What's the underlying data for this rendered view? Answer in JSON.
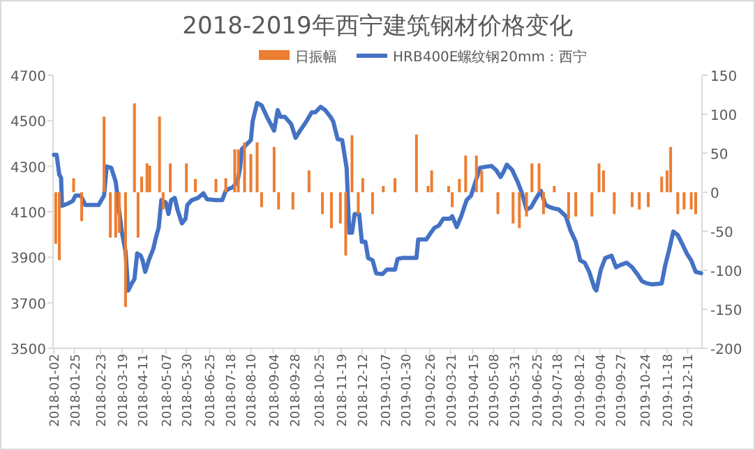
{
  "chart_data": {
    "type": "line",
    "title": "2018-2019年西宁建筑钢材价格变化",
    "legend": "top",
    "xlim": [
      "2018-01-01",
      "2019-12-27"
    ],
    "xticks": [
      "2018-01-02",
      "2018-01-25",
      "2018-02-23",
      "2018-03-19",
      "2018-04-11",
      "2018-05-07",
      "2018-05-30",
      "2018-06-25",
      "2018-07-18",
      "2018-08-10",
      "2018-09-04",
      "2018-09-28",
      "2018-10-25",
      "2018-11-19",
      "2018-12-12",
      "2019-01-07",
      "2019-01-30",
      "2019-02-26",
      "2019-03-21",
      "2019-04-15",
      "2019-05-08",
      "2019-05-31",
      "2019-06-25",
      "2019-07-18",
      "2019-08-12",
      "2019-09-04",
      "2019-09-27",
      "2019-10-24",
      "2019-11-18",
      "2019-12-11"
    ],
    "ylim": [
      3500,
      4700
    ],
    "yticks": [
      3500,
      3700,
      3900,
      4100,
      4300,
      4500,
      4700
    ],
    "y2lim": [
      -200,
      150
    ],
    "y2ticks": [
      -200,
      -150,
      -100,
      -50,
      0,
      50,
      100,
      150
    ],
    "series": [
      {
        "name": "日振幅",
        "type": "bar",
        "axis": "y2",
        "color": "#ed7d31",
        "x": [
          "2018-01-04",
          "2018-01-08",
          "2018-01-24",
          "2018-02-02",
          "2018-02-27",
          "2018-03-06",
          "2018-03-12",
          "2018-03-16",
          "2018-03-23",
          "2018-04-02",
          "2018-04-06",
          "2018-04-10",
          "2018-04-16",
          "2018-04-19",
          "2018-04-30",
          "2018-05-04",
          "2018-05-12",
          "2018-05-30",
          "2018-06-09",
          "2018-07-02",
          "2018-07-13",
          "2018-07-23",
          "2018-07-27",
          "2018-08-03",
          "2018-08-10",
          "2018-08-17",
          "2018-08-22",
          "2018-09-05",
          "2018-09-10",
          "2018-09-26",
          "2018-10-14",
          "2018-10-29",
          "2018-11-08",
          "2018-11-18",
          "2018-11-24",
          "2018-12-01",
          "2018-12-08",
          "2018-12-13",
          "2018-12-24",
          "2019-01-05",
          "2019-01-18",
          "2019-02-11",
          "2019-02-24",
          "2019-02-28",
          "2019-03-19",
          "2019-03-23",
          "2019-03-31",
          "2019-04-07",
          "2019-04-19",
          "2019-04-25",
          "2019-05-13",
          "2019-05-30",
          "2019-06-06",
          "2019-06-14",
          "2019-06-20",
          "2019-06-28",
          "2019-07-03",
          "2019-07-15",
          "2019-07-31",
          "2019-08-08",
          "2019-08-26",
          "2019-09-03",
          "2019-09-08",
          "2019-09-20",
          "2019-10-10",
          "2019-10-18",
          "2019-10-28",
          "2019-11-12",
          "2019-11-18",
          "2019-11-22",
          "2019-11-30",
          "2019-12-07",
          "2019-12-15",
          "2019-12-20"
        ],
        "values": [
          -66,
          -87,
          18,
          -37,
          97,
          -58,
          -58,
          -52,
          -147,
          114,
          -58,
          20,
          37,
          34,
          97,
          -22,
          37,
          37,
          17,
          17,
          18,
          55,
          55,
          64,
          49,
          64,
          -19,
          58,
          -22,
          -22,
          28,
          -28,
          -46,
          -40,
          -81,
          73,
          -28,
          18,
          -28,
          8,
          18,
          74,
          8,
          28,
          8,
          -19,
          17,
          47,
          47,
          28,
          -28,
          -40,
          -46,
          -31,
          37,
          37,
          -28,
          8,
          -34,
          -31,
          -31,
          37,
          28,
          -28,
          -19,
          -22,
          -19,
          20,
          28,
          58,
          -28,
          -22,
          -22,
          -28
        ]
      },
      {
        "name": "HRB400E螺纹钢20mm：西宁",
        "color": "#4472c4",
        "x": [
          "2018-01-02",
          "2018-01-05",
          "2018-01-08",
          "2018-01-10",
          "2018-01-11",
          "2018-01-17",
          "2018-01-23",
          "2018-01-26",
          "2018-02-01",
          "2018-02-06",
          "2018-02-21",
          "2018-02-27",
          "2018-03-02",
          "2018-03-07",
          "2018-03-12",
          "2018-03-14",
          "2018-03-16",
          "2018-03-19",
          "2018-03-23",
          "2018-03-26",
          "2018-03-30",
          "2018-04-02",
          "2018-04-05",
          "2018-04-09",
          "2018-04-11",
          "2018-04-14",
          "2018-04-18",
          "2018-04-23",
          "2018-04-26",
          "2018-04-29",
          "2018-05-02",
          "2018-05-07",
          "2018-05-10",
          "2018-05-13",
          "2018-05-17",
          "2018-05-20",
          "2018-05-25",
          "2018-05-29",
          "2018-05-31",
          "2018-06-05",
          "2018-06-12",
          "2018-06-18",
          "2018-06-22",
          "2018-07-02",
          "2018-07-09",
          "2018-07-13",
          "2018-07-17",
          "2018-07-21",
          "2018-07-26",
          "2018-07-29",
          "2018-07-31",
          "2018-08-05",
          "2018-08-10",
          "2018-08-12",
          "2018-08-17",
          "2018-08-22",
          "2018-08-28",
          "2018-09-05",
          "2018-09-09",
          "2018-09-12",
          "2018-09-17",
          "2018-09-24",
          "2018-09-29",
          "2018-10-04",
          "2018-10-11",
          "2018-10-17",
          "2018-10-21",
          "2018-10-27",
          "2018-11-01",
          "2018-11-07",
          "2018-11-10",
          "2018-11-15",
          "2018-11-20",
          "2018-11-25",
          "2018-11-28",
          "2018-12-01",
          "2018-12-04",
          "2018-12-09",
          "2018-12-12",
          "2018-12-16",
          "2018-12-19",
          "2018-12-24",
          "2018-12-28",
          "2019-01-04",
          "2019-01-09",
          "2019-01-18",
          "2019-01-21",
          "2019-01-26",
          "2019-02-11",
          "2019-02-13",
          "2019-02-22",
          "2019-02-26",
          "2019-03-03",
          "2019-03-08",
          "2019-03-13",
          "2019-03-20",
          "2019-03-23",
          "2019-03-28",
          "2019-04-02",
          "2019-04-08",
          "2019-04-13",
          "2019-04-18",
          "2019-04-23",
          "2019-04-28",
          "2019-05-06",
          "2019-05-11",
          "2019-05-16",
          "2019-05-19",
          "2019-05-23",
          "2019-05-29",
          "2019-06-04",
          "2019-06-09",
          "2019-06-14",
          "2019-06-19",
          "2019-06-25",
          "2019-06-30",
          "2019-07-05",
          "2019-07-10",
          "2019-07-15",
          "2019-07-20",
          "2019-07-28",
          "2019-08-02",
          "2019-08-08",
          "2019-08-13",
          "2019-08-18",
          "2019-08-23",
          "2019-08-29",
          "2019-08-31",
          "2019-09-05",
          "2019-09-10",
          "2019-09-17",
          "2019-09-22",
          "2019-09-27",
          "2019-10-04",
          "2019-10-10",
          "2019-10-16",
          "2019-10-21",
          "2019-10-27",
          "2019-11-01",
          "2019-11-12",
          "2019-11-16",
          "2019-11-20",
          "2019-11-25",
          "2019-11-30",
          "2019-12-05",
          "2019-12-10",
          "2019-12-15",
          "2019-12-20",
          "2019-12-26"
        ],
        "values": [
          4350,
          4350,
          4263,
          4249,
          4126,
          4135,
          4147,
          4171,
          4171,
          4130,
          4130,
          4171,
          4299,
          4293,
          4232,
          4171,
          4100,
          4008,
          3927,
          3754,
          3785,
          3805,
          3917,
          3907,
          3887,
          3836,
          3887,
          3937,
          3988,
          4029,
          4151,
          4141,
          4090,
          4151,
          4161,
          4110,
          4049,
          4069,
          4130,
          4151,
          4161,
          4181,
          4155,
          4151,
          4151,
          4192,
          4202,
          4208,
          4232,
          4293,
          4375,
          4395,
          4415,
          4497,
          4578,
          4568,
          4517,
          4456,
          4547,
          4517,
          4517,
          4486,
          4425,
          4456,
          4497,
          4537,
          4537,
          4561,
          4547,
          4517,
          4497,
          4419,
          4415,
          4293,
          4008,
          4008,
          4090,
          4090,
          3968,
          3968,
          3897,
          3887,
          3830,
          3826,
          3846,
          3846,
          3893,
          3897,
          3897,
          3978,
          3978,
          4002,
          4029,
          4039,
          4069,
          4069,
          4080,
          4033,
          4080,
          4151,
          4171,
          4232,
          4293,
          4297,
          4301,
          4283,
          4253,
          4273,
          4307,
          4283,
          4232,
          4181,
          4110,
          4120,
          4161,
          4192,
          4131,
          4120,
          4114,
          4110,
          4080,
          4019,
          3968,
          3886,
          3876,
          3836,
          3764,
          3754,
          3846,
          3897,
          3907,
          3856,
          3866,
          3876,
          3856,
          3825,
          3795,
          3785,
          3781,
          3785,
          3866,
          3927,
          4013,
          3998,
          3958,
          3917,
          3886,
          3836,
          3830
        ]
      }
    ]
  }
}
